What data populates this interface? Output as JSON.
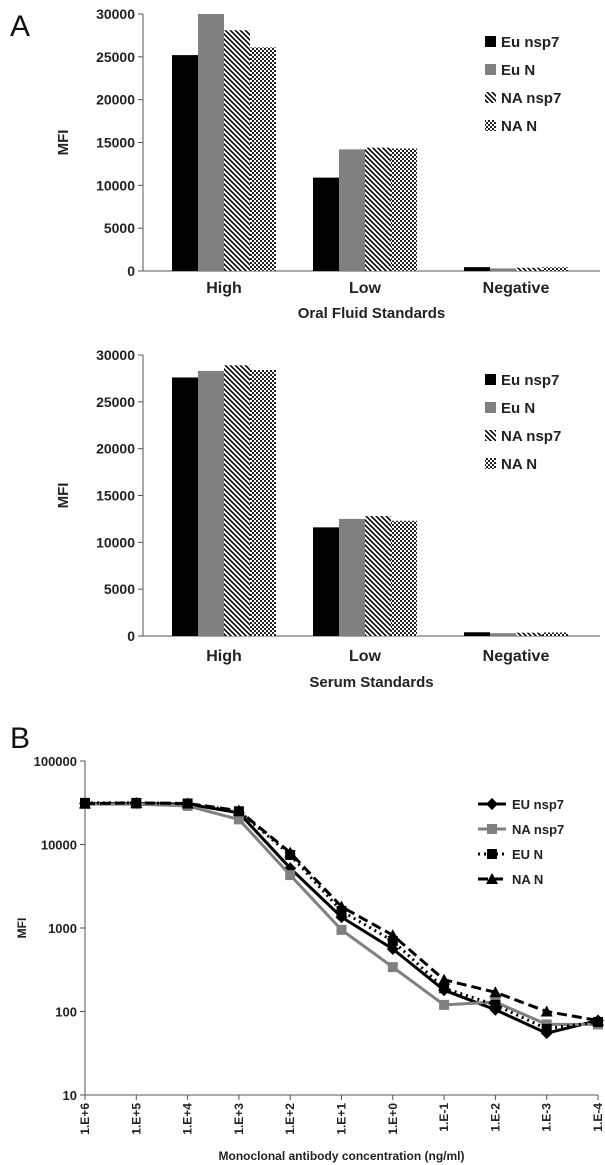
{
  "panels": {
    "a": "A",
    "b": "B"
  },
  "chart_data": [
    {
      "type": "bar",
      "title": "",
      "xlabel": "Oral Fluid Standards",
      "ylabel": "MFI",
      "ylim": [
        0,
        30000
      ],
      "yticks": [
        "0",
        "5000",
        "10000",
        "15000",
        "20000",
        "25000",
        "30000"
      ],
      "categories": [
        "High",
        "Low",
        "Negative"
      ],
      "legend_position": "top-right",
      "series": [
        {
          "name": "Eu nsp7",
          "values": [
            25200,
            10900,
            450
          ],
          "color": "#000000",
          "pattern": "solid"
        },
        {
          "name": "Eu N",
          "values": [
            30000,
            14200,
            300
          ],
          "color": "#808080",
          "pattern": "solid"
        },
        {
          "name": "NA nsp7",
          "values": [
            28100,
            14400,
            380
          ],
          "color": "#000000",
          "pattern": "diagonal"
        },
        {
          "name": "NA N",
          "values": [
            26100,
            14300,
            430
          ],
          "color": "#000000",
          "pattern": "checker"
        }
      ]
    },
    {
      "type": "bar",
      "title": "",
      "xlabel": "Serum Standards",
      "ylabel": "MFI",
      "ylim": [
        0,
        30000
      ],
      "yticks": [
        "0",
        "5000",
        "10000",
        "15000",
        "20000",
        "25000",
        "30000"
      ],
      "categories": [
        "High",
        "Low",
        "Negative"
      ],
      "legend_position": "top-right",
      "series": [
        {
          "name": "Eu nsp7",
          "values": [
            27600,
            11600,
            400
          ],
          "color": "#000000",
          "pattern": "solid"
        },
        {
          "name": "Eu N",
          "values": [
            28300,
            12500,
            300
          ],
          "color": "#808080",
          "pattern": "solid"
        },
        {
          "name": "NA nsp7",
          "values": [
            28900,
            12800,
            350
          ],
          "color": "#000000",
          "pattern": "diagonal"
        },
        {
          "name": "NA N",
          "values": [
            28400,
            12300,
            380
          ],
          "color": "#000000",
          "pattern": "checker"
        }
      ]
    },
    {
      "type": "line",
      "title": "",
      "xlabel": "Monoclonal antibody concentration (ng/ml)",
      "ylabel": "MFI",
      "yscale": "log",
      "ylim": [
        10,
        100000
      ],
      "yticks": [
        "10",
        "100",
        "1000",
        "10000",
        "100000"
      ],
      "x": [
        "1.E+6",
        "1.E+5",
        "1.E+4",
        "1.E+3",
        "1.E+2",
        "1.E+1",
        "1.E+0",
        "1.E-1",
        "1.E-2",
        "1.E-3",
        "1.E-4"
      ],
      "legend_position": "right",
      "series": [
        {
          "name": "EU nsp7",
          "values": [
            31000,
            31000,
            30500,
            24000,
            5200,
            1350,
            560,
            180,
            105,
            55,
            78
          ],
          "color": "#000000",
          "dash": "solid",
          "marker": "diamond"
        },
        {
          "name": "NA nsp7",
          "values": [
            30500,
            30500,
            29000,
            20000,
            4300,
            950,
            340,
            120,
            130,
            70,
            70
          ],
          "color": "#808080",
          "dash": "solid",
          "marker": "square"
        },
        {
          "name": "EU N",
          "values": [
            31500,
            31500,
            31000,
            25000,
            7500,
            1600,
            700,
            190,
            120,
            62,
            75
          ],
          "color": "#000000",
          "dash": "dot",
          "marker": "square"
        },
        {
          "name": "NA N",
          "values": [
            31000,
            31500,
            31000,
            25500,
            8000,
            1800,
            820,
            240,
            170,
            100,
            78
          ],
          "color": "#000000",
          "dash": "dash",
          "marker": "triangle"
        }
      ]
    }
  ]
}
